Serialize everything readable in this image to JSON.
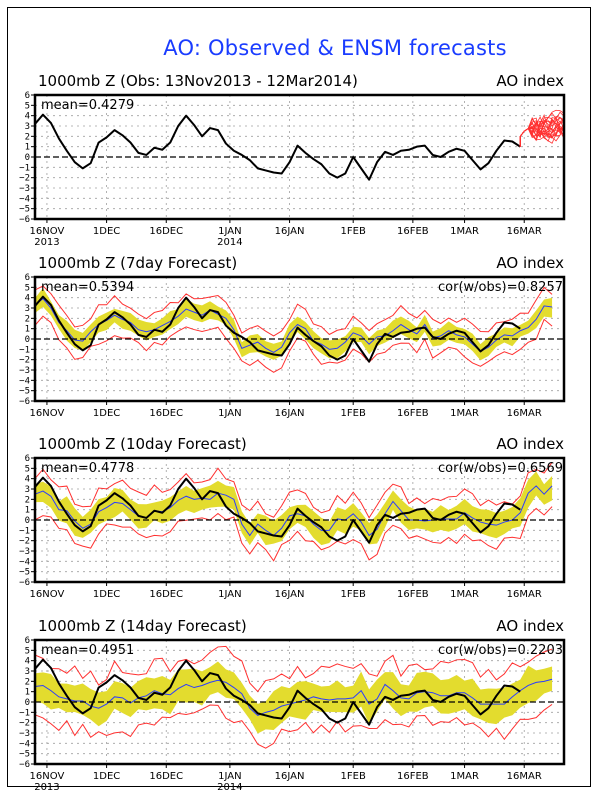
{
  "title": "AO: Observed & ENSM forecasts",
  "colors": {
    "title": "#1a3cff",
    "observed": "#000000",
    "ensemble_mean": "#2a3cff",
    "spread_band": "#e3dc2e",
    "extremes": "#ff3030",
    "forecast_members": "#ff3030",
    "grid": "#a0a0a0"
  },
  "chart_data": [
    {
      "type": "line",
      "title": "1000mb Z (Obs: 13Nov2013 - 12Mar2014)",
      "right_title": "AO index",
      "stat_label": "mean=0.4279",
      "ylabel": "AO index",
      "ylim": [
        -6,
        6
      ],
      "yticks": [
        -6,
        -5,
        -4,
        -3,
        -2,
        -1,
        0,
        1,
        2,
        3,
        4,
        5,
        6
      ],
      "xticks": [
        {
          "label": "16NOV",
          "sub": "2013",
          "day": 3
        },
        {
          "label": "1DEC",
          "sub": "",
          "day": 18
        },
        {
          "label": "16DEC",
          "sub": "",
          "day": 33
        },
        {
          "label": "1JAN",
          "sub": "2014",
          "day": 49
        },
        {
          "label": "16JAN",
          "sub": "",
          "day": 64
        },
        {
          "label": "1FEB",
          "sub": "",
          "day": 80
        },
        {
          "label": "16FEB",
          "sub": "",
          "day": 95
        },
        {
          "label": "1MAR",
          "sub": "",
          "day": 108
        },
        {
          "label": "16MAR",
          "sub": "",
          "day": 123
        }
      ],
      "xlim_days": [
        0,
        133
      ],
      "grid": true,
      "zero_line": "dashed",
      "observed": {
        "start": "13Nov2013",
        "step_days": 2,
        "values": [
          3.2,
          4.1,
          3.3,
          1.8,
          0.6,
          -0.5,
          -1.1,
          -0.6,
          1.4,
          1.9,
          2.6,
          2.1,
          1.4,
          0.4,
          0.2,
          0.9,
          0.7,
          1.4,
          3.0,
          4.0,
          3.1,
          2.0,
          2.8,
          2.6,
          1.3,
          0.6,
          0.2,
          -0.3,
          -1.1,
          -1.3,
          -1.5,
          -1.6,
          -0.5,
          1.1,
          0.4,
          -0.2,
          -0.7,
          -1.6,
          -2.0,
          -1.6,
          0.0,
          -1.1,
          -2.2,
          -0.5,
          0.5,
          0.2,
          0.6,
          0.7,
          1.0,
          1.1,
          0.2,
          0.0,
          0.5,
          0.8,
          0.6,
          -0.3,
          -1.2,
          -0.6,
          0.6,
          1.6,
          1.5,
          1.0
        ]
      },
      "forecast_members": {
        "start_day": 120,
        "range": [
          1.2,
          5.0
        ],
        "count": 20
      }
    },
    {
      "type": "area",
      "title": "1000mb Z (7day Forecast)",
      "right_title": "AO index",
      "stat_label": "mean=0.5394",
      "corr_label": "cor(w/obs)=0.8257",
      "ylim": [
        -6,
        6
      ],
      "lead_days": 7,
      "ens_mean": [
        3.3,
        3.9,
        3.0,
        1.6,
        0.8,
        -0.1,
        -0.2,
        0.7,
        1.4,
        1.8,
        2.3,
        1.9,
        1.6,
        0.9,
        0.7,
        0.9,
        1.3,
        1.7,
        2.2,
        2.9,
        2.6,
        2.3,
        2.8,
        2.4,
        2.0,
        0.9,
        -0.9,
        -0.6,
        -0.3,
        -0.9,
        -1.3,
        -0.8,
        0.6,
        1.4,
        1.0,
        -0.2,
        -0.5,
        -1.0,
        -0.9,
        -0.3,
        0.6,
        0.3,
        -0.5,
        0.2,
        0.3,
        0.8,
        1.4,
        0.9,
        0.5,
        1.4,
        0.1,
        0.3,
        0.8,
        0.4,
        0.2,
        -0.5,
        -1.2,
        -0.8,
        -0.1,
        0.4,
        0.3,
        0.8,
        1.1,
        1.9,
        3.2,
        3.1
      ],
      "spread": 0.8,
      "extreme_offset": 1.6
    },
    {
      "type": "area",
      "title": "1000mb Z (10day Forecast)",
      "right_title": "AO index",
      "stat_label": "mean=0.4778",
      "corr_label": "cor(w/obs)=0.6569",
      "ylim": [
        -6,
        6
      ],
      "lead_days": 10,
      "ens_mean": [
        2.5,
        2.8,
        2.3,
        1.0,
        0.9,
        -0.1,
        -0.8,
        -0.4,
        0.8,
        1.2,
        1.7,
        1.6,
        1.0,
        0.4,
        0.2,
        0.9,
        0.8,
        1.2,
        1.9,
        2.3,
        2.0,
        2.1,
        2.0,
        2.6,
        2.4,
        2.0,
        -0.4,
        -1.5,
        -0.4,
        -1.0,
        -1.5,
        -0.8,
        0.4,
        0.6,
        0.4,
        -0.4,
        -1.0,
        -1.0,
        0.1,
        0.0,
        0.6,
        -0.2,
        -1.5,
        -0.9,
        0.6,
        1.8,
        0.9,
        0.0,
        0.0,
        -0.1,
        0.0,
        0.1,
        0.1,
        0.1,
        0.7,
        0.2,
        -0.2,
        -0.4,
        -0.5,
        -0.2,
        0.0,
        0.7,
        2.6,
        3.3,
        2.5,
        3.3
      ],
      "spread": 1.1,
      "extreme_offset": 2.0
    },
    {
      "type": "area",
      "title": "1000mb Z (14day Forecast)",
      "right_title": "AO index",
      "stat_label": "mean=0.4951",
      "corr_label": "cor(w/obs)=0.2203",
      "ylim": [
        -6,
        6
      ],
      "lead_days": 14,
      "ens_mean": [
        1.5,
        1.6,
        1.1,
        0.5,
        0.3,
        0.1,
        0.1,
        -0.4,
        -0.6,
        -0.2,
        0.5,
        0.4,
        -0.1,
        0.4,
        0.6,
        1.1,
        0.8,
        0.7,
        1.3,
        1.7,
        1.4,
        1.6,
        1.9,
        2.1,
        1.9,
        1.4,
        0.8,
        -0.6,
        -1.3,
        -1.0,
        -0.8,
        -0.4,
        -0.2,
        0.0,
        0.2,
        0.5,
        0.3,
        0.2,
        0.3,
        0.3,
        0.4,
        1.1,
        -0.2,
        0.3,
        1.7,
        1.1,
        0.4,
        0.3,
        0.9,
        1.0,
        0.9,
        0.6,
        0.6,
        0.9,
        0.9,
        0.4,
        -0.2,
        -0.2,
        -0.2,
        -0.2,
        0.5,
        1.1,
        1.6,
        1.9,
        2.0,
        2.2
      ],
      "spread": 1.5,
      "extreme_offset": 2.8
    }
  ]
}
